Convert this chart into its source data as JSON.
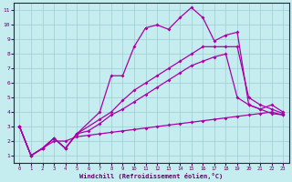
{
  "xlabel": "Windchill (Refroidissement éolien,°C)",
  "background_color": "#c5ecee",
  "grid_color": "#9ecdd2",
  "line_color": "#aa00aa",
  "spine_color": "#660066",
  "xlim": [
    -0.5,
    23.5
  ],
  "ylim": [
    0.5,
    11.5
  ],
  "xticks": [
    0,
    1,
    2,
    3,
    4,
    5,
    6,
    7,
    8,
    9,
    10,
    11,
    12,
    13,
    14,
    15,
    16,
    17,
    18,
    19,
    20,
    21,
    22,
    23
  ],
  "yticks": [
    1,
    2,
    3,
    4,
    5,
    6,
    7,
    8,
    9,
    10,
    11
  ],
  "s1_x": [
    0,
    1,
    2,
    3,
    4,
    5,
    7,
    8,
    9,
    10,
    11,
    12,
    13,
    14,
    15,
    16,
    17,
    18,
    19,
    20,
    21,
    22,
    23
  ],
  "s1_y": [
    3,
    1,
    1.5,
    2.2,
    1.5,
    2.5,
    4.0,
    6.5,
    6.5,
    8.5,
    9.8,
    10.0,
    9.7,
    10.5,
    11.2,
    10.5,
    8.9,
    9.3,
    9.5,
    4.5,
    4.2,
    4.5,
    4.0
  ],
  "s2_x": [
    0,
    1,
    2,
    3,
    4,
    5,
    7,
    8,
    9,
    10,
    11,
    12,
    13,
    14,
    15,
    16,
    17,
    18,
    19,
    20,
    21,
    22,
    23
  ],
  "s2_y": [
    3,
    1,
    1.5,
    2.2,
    1.5,
    2.5,
    3.5,
    4.0,
    4.8,
    5.5,
    6.0,
    6.5,
    7.0,
    7.5,
    8.0,
    8.5,
    8.5,
    8.5,
    8.5,
    5.0,
    4.5,
    4.2,
    3.9
  ],
  "s3_x": [
    0,
    1,
    2,
    3,
    4,
    5,
    6,
    7,
    8,
    9,
    10,
    11,
    12,
    13,
    14,
    15,
    16,
    17,
    18,
    19,
    20,
    21,
    22,
    23
  ],
  "s3_y": [
    3,
    1,
    1.5,
    2.2,
    1.5,
    2.5,
    2.7,
    3.2,
    3.8,
    4.2,
    4.7,
    5.2,
    5.7,
    6.2,
    6.7,
    7.2,
    7.5,
    7.8,
    8.0,
    5.0,
    4.5,
    4.2,
    3.9,
    3.8
  ],
  "s4_x": [
    0,
    1,
    2,
    3,
    4,
    5,
    6,
    7,
    8,
    9,
    10,
    11,
    12,
    13,
    14,
    15,
    16,
    17,
    18,
    19,
    20,
    21,
    22,
    23
  ],
  "s4_y": [
    3,
    1,
    1.5,
    2.0,
    2.0,
    2.3,
    2.4,
    2.5,
    2.6,
    2.7,
    2.8,
    2.9,
    3.0,
    3.1,
    3.2,
    3.3,
    3.4,
    3.5,
    3.6,
    3.7,
    3.8,
    3.9,
    4.0,
    3.8
  ]
}
